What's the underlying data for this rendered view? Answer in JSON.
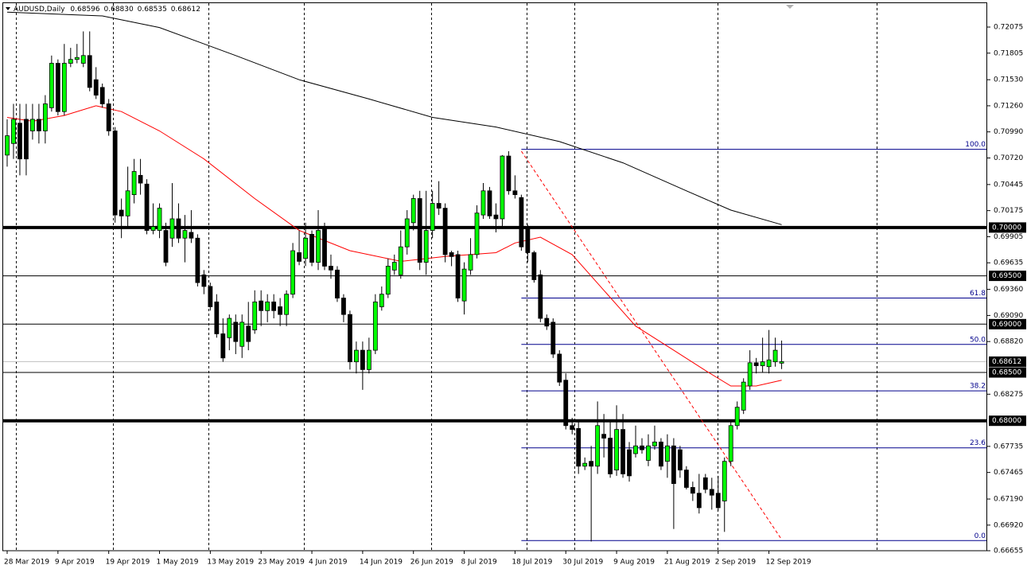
{
  "chart_data": {
    "type": "candlestick",
    "title": "AUDUSD,Daily",
    "header_labels": [
      "0.68596",
      "0.68830",
      "0.68535",
      "0.68612"
    ],
    "categories": [
      "28 Mar 2019",
      null,
      null,
      null,
      null,
      null,
      null,
      null,
      "9 Apr 2019",
      null,
      null,
      null,
      null,
      null,
      null,
      null,
      "19 Apr 2019",
      null,
      null,
      null,
      null,
      null,
      null,
      null,
      "1 May 2019",
      null,
      null,
      null,
      null,
      null,
      null,
      null,
      "13 May 2019",
      null,
      null,
      null,
      null,
      null,
      null,
      null,
      "23 May 2019",
      null,
      null,
      null,
      null,
      null,
      null,
      null,
      "4 Jun 2019",
      null,
      null,
      null,
      null,
      null,
      null,
      null,
      "14 Jun 2019",
      null,
      null,
      null,
      null,
      null,
      null,
      null,
      "26 Jun 2019",
      null,
      null,
      null,
      null,
      null,
      null,
      null,
      "8 Jul 2019",
      null,
      null,
      null,
      null,
      null,
      null,
      null,
      "18 Jul 2019",
      null,
      null,
      null,
      null,
      null,
      null,
      null,
      "30 Jul 2019",
      null,
      null,
      null,
      null,
      null,
      null,
      null,
      "9 Aug 2019",
      null,
      null,
      null,
      null,
      null,
      null,
      null,
      "21 Aug 2019",
      null,
      null,
      null,
      null,
      null,
      null,
      null,
      "2 Sep 2019",
      null,
      null,
      null,
      null,
      null,
      null,
      null,
      "12 Sep 2019",
      null,
      null
    ],
    "open": [
      0.7075,
      0.7087,
      0.7108,
      0.7112,
      0.71,
      0.7112,
      0.71,
      0.7124,
      0.717,
      0.712,
      0.717,
      0.7174,
      0.717,
      0.7178,
      0.7153,
      0.7145,
      0.7128,
      0.71,
      0.7018,
      0.7012,
      0.7034,
      0.7054,
      0.7045,
      0.6997,
      0.6997,
      0.6997,
      0.6989,
      0.7009,
      0.6989,
      0.6995,
      0.6989,
      0.6951,
      0.6939,
      0.6923,
      0.689,
      0.6886,
      0.6902,
      0.6877,
      0.6898,
      0.6894,
      0.6924,
      0.6914,
      0.6923,
      0.6918,
      0.691,
      0.6931,
      0.6974,
      0.6968,
      0.6993,
      0.6964,
      0.7001,
      0.696,
      0.6956,
      0.6927,
      0.691,
      0.6861,
      0.6873,
      0.6853,
      0.6873,
      0.6918,
      0.6931,
      0.6956,
      0.6951,
      0.698,
      0.7005,
      0.703,
      0.6964,
      0.6997,
      0.7025,
      0.702,
      0.6974,
      0.6972,
      0.6924,
      0.6956,
      0.6972,
      0.7013,
      0.7038,
      0.7013,
      0.7009,
      0.7074,
      0.7038,
      0.7031,
      0.7001,
      0.6974,
      0.6951,
      0.6906,
      0.6902,
      0.6869,
      0.6842,
      0.6795,
      0.6792,
      0.6753,
      0.6758,
      0.6753,
      0.6786,
      0.6782,
      0.6749,
      0.6791,
      0.677,
      0.6766,
      0.6774,
      0.6759,
      0.6774,
      0.6778,
      0.6758,
      0.6774,
      0.677,
      0.6749,
      0.6731,
      0.6725,
      0.6741,
      0.6729,
      0.6725,
      0.6717,
      0.6758,
      0.6795,
      0.6811,
      0.6836,
      0.686,
      0.6857,
      0.6856,
      0.6861,
      0.68596
    ],
    "high": [
      0.7112,
      0.7128,
      0.7128,
      0.7128,
      0.7128,
      0.7128,
      0.7137,
      0.7178,
      0.7174,
      0.719,
      0.7186,
      0.719,
      0.7203,
      0.7203,
      0.7166,
      0.7149,
      0.7133,
      0.7104,
      0.703,
      0.7063,
      0.7071,
      0.7071,
      0.705,
      0.7025,
      0.7025,
      0.7005,
      0.7046,
      0.7025,
      0.7013,
      0.7018,
      0.6993,
      0.6956,
      0.6943,
      0.6931,
      0.6906,
      0.691,
      0.691,
      0.691,
      0.6923,
      0.6935,
      0.6935,
      0.6931,
      0.6931,
      0.6927,
      0.6935,
      0.6984,
      0.6997,
      0.7005,
      0.6997,
      0.7018,
      0.7005,
      0.6972,
      0.696,
      0.6931,
      0.6914,
      0.6882,
      0.6882,
      0.6886,
      0.6931,
      0.6939,
      0.6968,
      0.6972,
      0.6997,
      0.7018,
      0.7034,
      0.7038,
      0.7038,
      0.7038,
      0.7048,
      0.7025,
      0.6976,
      0.6976,
      0.6964,
      0.6989,
      0.7023,
      0.7046,
      0.7042,
      0.7025,
      0.7075,
      0.7079,
      0.7054,
      0.7034,
      0.7003,
      0.6976,
      0.6956,
      0.691,
      0.6906,
      0.6873,
      0.6849,
      0.6803,
      0.6799,
      0.6762,
      0.6774,
      0.682,
      0.6807,
      0.6799,
      0.6816,
      0.6807,
      0.6778,
      0.6795,
      0.6782,
      0.6786,
      0.6795,
      0.6782,
      0.6786,
      0.6782,
      0.6774,
      0.6753,
      0.6737,
      0.6745,
      0.6745,
      0.6741,
      0.6743,
      0.6762,
      0.6799,
      0.682,
      0.6844,
      0.6873,
      0.6865,
      0.6886,
      0.6894,
      0.6886,
      0.6883
    ],
    "low": [
      0.7063,
      0.7071,
      0.7054,
      0.7054,
      0.7091,
      0.7087,
      0.7087,
      0.712,
      0.7116,
      0.7116,
      0.7166,
      0.717,
      0.7166,
      0.7141,
      0.7133,
      0.7124,
      0.7095,
      0.7005,
      0.6989,
      0.7001,
      0.7025,
      0.7034,
      0.6993,
      0.6993,
      0.6989,
      0.696,
      0.698,
      0.6984,
      0.6964,
      0.6984,
      0.6939,
      0.6931,
      0.6914,
      0.6886,
      0.6861,
      0.6873,
      0.6869,
      0.6865,
      0.6873,
      0.689,
      0.6898,
      0.6902,
      0.6906,
      0.6898,
      0.6898,
      0.6927,
      0.6961,
      0.696,
      0.696,
      0.6956,
      0.6956,
      0.6947,
      0.6923,
      0.6902,
      0.6853,
      0.6849,
      0.6832,
      0.6849,
      0.6869,
      0.6914,
      0.6927,
      0.6951,
      0.6947,
      0.6972,
      0.6997,
      0.6956,
      0.6951,
      0.6989,
      0.7013,
      0.6964,
      0.696,
      0.6923,
      0.691,
      0.6951,
      0.6968,
      0.7009,
      0.7009,
      0.6995,
      0.7001,
      0.7034,
      0.703,
      0.6976,
      0.6964,
      0.6943,
      0.6902,
      0.6894,
      0.6865,
      0.6836,
      0.6791,
      0.6786,
      0.6745,
      0.6749,
      0.6675,
      0.6745,
      0.6762,
      0.6741,
      0.6743,
      0.6741,
      0.6737,
      0.6762,
      0.6766,
      0.6753,
      0.677,
      0.6749,
      0.6741,
      0.6688,
      0.6741,
      0.6729,
      0.6717,
      0.6704,
      0.6725,
      0.6708,
      0.6707,
      0.6685,
      0.6753,
      0.6791,
      0.6807,
      0.6832,
      0.6849,
      0.685,
      0.6849,
      0.6856,
      0.68535
    ],
    "close": [
      0.7095,
      0.7112,
      0.7071,
      0.7071,
      0.7112,
      0.71,
      0.7128,
      0.717,
      0.712,
      0.717,
      0.7174,
      0.7176,
      0.7178,
      0.7145,
      0.7137,
      0.7128,
      0.71,
      0.7013,
      0.7012,
      0.7038,
      0.7058,
      0.7046,
      0.6997,
      0.7001,
      0.702,
      0.6964,
      0.7009,
      0.6989,
      0.6997,
      0.6989,
      0.6943,
      0.6939,
      0.6918,
      0.689,
      0.6865,
      0.6906,
      0.6882,
      0.6902,
      0.6882,
      0.6923,
      0.6914,
      0.6923,
      0.6914,
      0.691,
      0.6931,
      0.6976,
      0.6965,
      0.6989,
      0.6964,
      0.6997,
      0.696,
      0.6956,
      0.6927,
      0.691,
      0.6861,
      0.6873,
      0.6853,
      0.6873,
      0.6923,
      0.6931,
      0.696,
      0.6964,
      0.698,
      0.7009,
      0.703,
      0.6964,
      0.6997,
      0.7025,
      0.702,
      0.6972,
      0.697,
      0.6927,
      0.6957,
      0.6972,
      0.7015,
      0.7038,
      0.7012,
      0.7009,
      0.7074,
      0.7038,
      0.7034,
      0.698,
      0.6974,
      0.6946,
      0.6906,
      0.6898,
      0.6869,
      0.684,
      0.6795,
      0.6791,
      0.6753,
      0.6756,
      0.6753,
      0.6795,
      0.6782,
      0.6745,
      0.6791,
      0.6745,
      0.6743,
      0.6774,
      0.677,
      0.6774,
      0.6778,
      0.6753,
      0.6774,
      0.6735,
      0.6749,
      0.6731,
      0.6725,
      0.671,
      0.6729,
      0.6723,
      0.671,
      0.6758,
      0.6795,
      0.6814,
      0.684,
      0.686,
      0.6857,
      0.6861,
      0.6863,
      0.6873,
      0.68612
    ],
    "up_color": "#00ff00",
    "down_color": "#000000",
    "ylim": [
      0.66655,
      0.72322
    ],
    "yticks": [
      0.72075,
      0.71805,
      {
        "value": 0.7153,
        "label": "0.71530"
      },
      {
        "value": 0.7126,
        "label": "0.71260"
      },
      {
        "value": 0.7099,
        "label": "0.70990"
      },
      {
        "value": 0.7072,
        "label": "0.70720"
      },
      0.70445,
      0.70175,
      0.69905,
      0.69635,
      {
        "value": 0.6936,
        "label": "0.69360"
      },
      {
        "value": 0.6909,
        "label": "0.69090"
      },
      {
        "value": 0.6882,
        "label": "0.68820"
      },
      0.68275,
      0.67735,
      0.67465,
      {
        "value": 0.6719,
        "label": "0.67190"
      },
      {
        "value": 0.6692,
        "label": "0.66920"
      },
      0.66655
    ],
    "levels": [
      {
        "value": 0.7,
        "label": "0.70000",
        "thick": true
      },
      {
        "value": 0.695,
        "label": "0.69500",
        "thick": false
      },
      {
        "value": 0.69,
        "label": "0.69000",
        "thick": false
      },
      {
        "value": 0.685,
        "label": "0.68500",
        "thick": false
      },
      {
        "value": 0.68,
        "label": "0.68000",
        "thick": true
      }
    ],
    "current_price_color": "#c0c0c0",
    "overlays": [
      {
        "color": "#000000",
        "dashed": false,
        "x": [
          0,
          15,
          24,
          36,
          46,
          57,
          67,
          77,
          87,
          97,
          107,
          114,
          122
        ],
        "values": [
          0.7223,
          0.7219,
          0.7207,
          0.7178,
          0.7153,
          0.7133,
          0.7114,
          0.7104,
          0.7089,
          0.7067,
          0.7038,
          0.7018,
          0.7003
        ]
      },
      {
        "color": "#ff0000",
        "dashed": false,
        "x": [
          0,
          4,
          9,
          14,
          18,
          24,
          31,
          39,
          46,
          54,
          62,
          69,
          77,
          80,
          84,
          89,
          94,
          99,
          105,
          110,
          114,
          118,
          122
        ],
        "values": [
          0.7114,
          0.711,
          0.7116,
          0.7126,
          0.712,
          0.71,
          0.7071,
          0.703,
          0.6997,
          0.6976,
          0.6965,
          0.697,
          0.6974,
          0.6984,
          0.699,
          0.6972,
          0.6935,
          0.6898,
          0.6873,
          0.6852,
          0.6836,
          0.6836,
          0.6842
        ]
      },
      {
        "color": "#ff0000",
        "dashed": true,
        "x": [
          81,
          122
        ],
        "values": [
          0.7079,
          0.6677
        ]
      }
    ],
    "fibonacci": {
      "color": "#00008b",
      "x_start": 81,
      "levels": [
        {
          "label": "100.0",
          "value": 0.7081
        },
        {
          "label": "61.8",
          "value": 0.6927
        },
        {
          "label": "50.0",
          "value": 0.6879
        },
        {
          "label": "38.2",
          "value": 0.6831
        },
        {
          "label": "23.6",
          "value": 0.6772
        },
        {
          "label": "0.0",
          "value": 0.6676
        }
      ]
    }
  }
}
